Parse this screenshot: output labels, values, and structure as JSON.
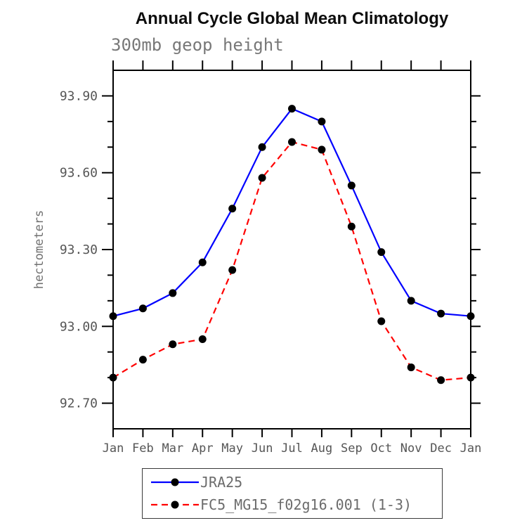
{
  "chart_data": {
    "type": "line",
    "title": "Annual Cycle Global Mean Climatology",
    "subtitle": "300mb geop height",
    "ylabel": "hectometers",
    "xlabel": "",
    "categories": [
      "Jan",
      "Feb",
      "Mar",
      "Apr",
      "May",
      "Jun",
      "Jul",
      "Aug",
      "Sep",
      "Oct",
      "Nov",
      "Dec",
      "Jan"
    ],
    "ylim": [
      92.6,
      94.0
    ],
    "yticks": [
      92.7,
      93.0,
      93.3,
      93.6,
      93.9
    ],
    "ytick_labels": [
      "92.70",
      "93.00",
      "93.30",
      "93.60",
      "93.90"
    ],
    "minor_tick_step": 0.1,
    "grid": false,
    "legend_position": "bottom",
    "axis_color": "#000000",
    "series": [
      {
        "name": "JRA25",
        "color": "#0000ff",
        "style": "solid",
        "marker": "circle",
        "marker_color": "#000000",
        "values": [
          93.04,
          93.07,
          93.13,
          93.25,
          93.46,
          93.7,
          93.85,
          93.8,
          93.55,
          93.29,
          93.1,
          93.05,
          93.04
        ]
      },
      {
        "name": "FC5_MG15_f02g16.001 (1-3)",
        "color": "#ff0000",
        "style": "dashed",
        "marker": "circle",
        "marker_color": "#000000",
        "values": [
          92.8,
          92.87,
          92.93,
          92.95,
          93.22,
          93.58,
          93.72,
          93.69,
          93.39,
          93.02,
          92.84,
          92.79,
          92.8
        ]
      }
    ]
  }
}
